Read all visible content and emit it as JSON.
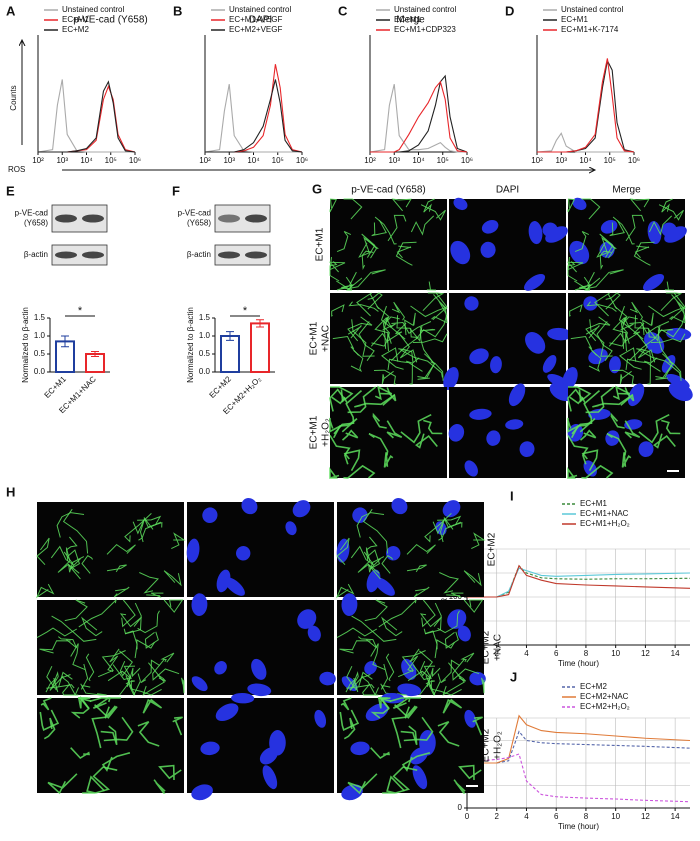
{
  "flow_axes": {
    "y_label": "Counts",
    "x_label": "ROS"
  },
  "chart_data": [
    {
      "panel": "A",
      "type": "line",
      "log_x": true,
      "xlim": [
        100,
        1000000
      ],
      "ylim": [
        0,
        100
      ],
      "xticks": [
        {
          "value": 100,
          "label": "10²"
        },
        {
          "value": 1000,
          "label": "10³"
        },
        {
          "value": 10000,
          "label": "10⁴"
        },
        {
          "value": 100000,
          "label": "10⁵"
        },
        {
          "value": 1000000,
          "label": "10⁶"
        }
      ],
      "x": [
        100,
        400,
        630,
        1000,
        1600,
        4000,
        10000,
        25000,
        50000,
        80000,
        126000,
        200000,
        400000,
        1000000
      ],
      "series": [
        {
          "name": "Unstained control",
          "color": "#aaaaaa",
          "values": [
            0,
            2,
            40,
            62,
            15,
            1,
            0,
            0,
            0,
            0,
            0,
            0,
            0,
            0
          ]
        },
        {
          "name": "EC+M1",
          "color": "#e8262a",
          "values": [
            0,
            0,
            0,
            0,
            0,
            1,
            2,
            10,
            45,
            56,
            45,
            15,
            2,
            0
          ]
        },
        {
          "name": "EC+M2",
          "color": "#222222",
          "values": [
            0,
            0,
            0,
            0,
            0,
            1,
            3,
            12,
            52,
            60,
            42,
            12,
            1,
            0
          ]
        }
      ]
    },
    {
      "panel": "B",
      "type": "line",
      "log_x": true,
      "xlim": [
        100,
        1000000
      ],
      "ylim": [
        0,
        100
      ],
      "xticks": [
        {
          "value": 100,
          "label": "10²"
        },
        {
          "value": 1000,
          "label": "10³"
        },
        {
          "value": 10000,
          "label": "10⁴"
        },
        {
          "value": 100000,
          "label": "10⁵"
        },
        {
          "value": 1000000,
          "label": "10⁶"
        }
      ],
      "x": [
        100,
        400,
        630,
        1000,
        1600,
        4000,
        10000,
        25000,
        50000,
        80000,
        126000,
        200000,
        400000,
        1000000
      ],
      "series": [
        {
          "name": "Unstained control",
          "color": "#aaaaaa",
          "values": [
            0,
            2,
            35,
            58,
            14,
            1,
            0,
            0,
            0,
            0,
            0,
            0,
            0,
            0
          ]
        },
        {
          "name": "EC+M1+VEGF",
          "color": "#e8262a",
          "values": [
            0,
            0,
            0,
            0,
            0,
            1,
            4,
            14,
            40,
            75,
            55,
            15,
            2,
            0
          ]
        },
        {
          "name": "EC+M2+VEGF",
          "color": "#222222",
          "values": [
            0,
            0,
            0,
            0,
            0,
            2,
            8,
            22,
            45,
            62,
            42,
            10,
            1,
            0
          ]
        }
      ]
    },
    {
      "panel": "C",
      "type": "line",
      "log_x": true,
      "xlim": [
        100,
        1000000
      ],
      "ylim": [
        0,
        100
      ],
      "xticks": [
        {
          "value": 100,
          "label": "10²"
        },
        {
          "value": 1000,
          "label": "10³"
        },
        {
          "value": 10000,
          "label": "10⁴"
        },
        {
          "value": 100000,
          "label": "10⁵"
        },
        {
          "value": 1000000,
          "label": "10⁶"
        }
      ],
      "x": [
        100,
        400,
        630,
        1000,
        1600,
        4000,
        10000,
        25000,
        50000,
        80000,
        126000,
        200000,
        400000,
        1000000
      ],
      "series": [
        {
          "name": "Unstained control",
          "color": "#aaaaaa",
          "values": [
            0,
            2,
            40,
            58,
            14,
            2,
            2,
            3,
            6,
            8,
            4,
            1,
            0,
            0
          ]
        },
        {
          "name": "EC+M1",
          "color": "#222222",
          "values": [
            0,
            0,
            0,
            0,
            0,
            1,
            6,
            18,
            40,
            60,
            65,
            30,
            3,
            0
          ]
        },
        {
          "name": "EC+M1+CDP323",
          "color": "#e8262a",
          "values": [
            0,
            0,
            0,
            0,
            2,
            15,
            30,
            42,
            55,
            60,
            45,
            12,
            1,
            0
          ]
        }
      ]
    },
    {
      "panel": "D",
      "type": "line",
      "log_x": true,
      "xlim": [
        100,
        1000000
      ],
      "ylim": [
        0,
        100
      ],
      "xticks": [
        {
          "value": 100,
          "label": "10²"
        },
        {
          "value": 1000,
          "label": "10³"
        },
        {
          "value": 10000,
          "label": "10⁴"
        },
        {
          "value": 100000,
          "label": "10⁵"
        },
        {
          "value": 1000000,
          "label": "10⁶"
        }
      ],
      "x": [
        100,
        400,
        630,
        1000,
        1600,
        4000,
        10000,
        25000,
        50000,
        80000,
        126000,
        200000,
        400000,
        1000000
      ],
      "series": [
        {
          "name": "Unstained control",
          "color": "#aaaaaa",
          "values": [
            0,
            1,
            10,
            16,
            5,
            0,
            0,
            0,
            0,
            0,
            0,
            0,
            0,
            0
          ]
        },
        {
          "name": "EC+M1",
          "color": "#222222",
          "values": [
            0,
            0,
            0,
            0,
            0,
            1,
            3,
            12,
            55,
            78,
            70,
            25,
            2,
            0
          ]
        },
        {
          "name": "EC+M1+K-7174",
          "color": "#e8262a",
          "values": [
            0,
            0,
            0,
            0,
            0,
            1,
            4,
            15,
            60,
            80,
            48,
            12,
            1,
            0
          ]
        }
      ]
    },
    {
      "panel": "E",
      "type": "bar",
      "ylabel": "Normalized to β-actin",
      "annotation": "*",
      "categories": [
        "EC+M1",
        "EC+M1+NAC"
      ],
      "values": [
        0.85,
        0.5
      ],
      "errors": [
        0.15,
        0.07
      ],
      "colors": [
        "#1f3e9e",
        "#e8262a"
      ],
      "ylim": [
        0,
        1.5
      ],
      "yticks": [
        {
          "value": 0,
          "label": "0.0"
        },
        0.5,
        {
          "value": 1,
          "label": "1.0"
        },
        1.5
      ]
    },
    {
      "panel": "F",
      "type": "bar",
      "ylabel": "Normalized to β-actin",
      "annotation": "*",
      "categories": [
        "EC+M2",
        "EC+M2+H₂O₂"
      ],
      "values": [
        1.0,
        1.35
      ],
      "errors": [
        0.12,
        0.1
      ],
      "colors": [
        "#1f3e9e",
        "#e8262a"
      ],
      "ylim": [
        0,
        1.5
      ],
      "yticks": [
        {
          "value": 0,
          "label": "0.0"
        },
        0.5,
        {
          "value": 1,
          "label": "1.0"
        },
        1.5
      ]
    },
    {
      "panel": "I",
      "type": "line",
      "ylabel": "TER in %",
      "xlabel": "Time (hour)",
      "grid": true,
      "xlim": [
        0,
        15
      ],
      "ylim": [
        0,
        200
      ],
      "xticks": [
        0,
        2,
        4,
        6,
        8,
        10,
        12,
        14
      ],
      "yticks": [
        0,
        50,
        100,
        150,
        200
      ],
      "x": [
        0,
        1,
        2,
        2.8,
        3.5,
        4,
        5,
        6,
        8,
        10,
        12,
        15
      ],
      "series": [
        {
          "name": "EC+M1",
          "color": "#3a8a3a",
          "dashed": true,
          "values": [
            100,
            100,
            100,
            110,
            165,
            150,
            140,
            138,
            137,
            138,
            138,
            139
          ]
        },
        {
          "name": "EC+M1+NAC",
          "color": "#5bc8d8",
          "dashed": false,
          "values": [
            100,
            100,
            100,
            112,
            160,
            155,
            145,
            143,
            145,
            147,
            148,
            150
          ]
        },
        {
          "name": "EC+M1+H₂O₂",
          "color": "#c0392b",
          "dashed": false,
          "values": [
            100,
            100,
            100,
            105,
            165,
            145,
            135,
            128,
            125,
            123,
            121,
            118
          ]
        }
      ]
    },
    {
      "panel": "J",
      "type": "line",
      "ylabel": "TER in %",
      "xlabel": "Time (hour)",
      "grid": true,
      "xlim": [
        0,
        15
      ],
      "ylim": [
        0,
        200
      ],
      "xticks": [
        0,
        2,
        4,
        6,
        8,
        10,
        12,
        14
      ],
      "yticks": [
        0,
        50,
        100,
        150,
        200
      ],
      "x": [
        0,
        1,
        2,
        2.8,
        3.5,
        4,
        5,
        6,
        8,
        10,
        12,
        15
      ],
      "series": [
        {
          "name": "EC+M2",
          "color": "#5566aa",
          "dashed": true,
          "values": [
            100,
            100,
            100,
            105,
            170,
            150,
            145,
            143,
            141,
            139,
            137,
            133
          ]
        },
        {
          "name": "EC+M2+NAC",
          "color": "#e07b39",
          "dashed": false,
          "values": [
            100,
            100,
            100,
            110,
            205,
            185,
            172,
            168,
            165,
            160,
            155,
            150
          ]
        },
        {
          "name": "EC+M2+H₂O₂",
          "color": "#cc55dd",
          "dashed": true,
          "values": [
            100,
            105,
            108,
            112,
            120,
            60,
            30,
            25,
            22,
            20,
            17,
            14
          ]
        }
      ]
    }
  ],
  "blots": {
    "E": {
      "rows": [
        [
          "p-VE-cad",
          "(Y658)"
        ],
        [
          "β-actin"
        ]
      ]
    },
    "F": {
      "rows": [
        [
          "p-VE-cad",
          "(Y658)"
        ],
        [
          "β-actin"
        ]
      ]
    }
  },
  "micrographs": {
    "G": {
      "panel": "G",
      "columns": [
        "p-VE-cad (Y658)",
        "DAPI",
        "Merge"
      ],
      "rows": [
        [
          "EC+M1"
        ],
        [
          "EC+M1",
          "+NAC"
        ],
        [
          "EC+M1",
          "+H₂O₂"
        ]
      ]
    },
    "H": {
      "panel": "H",
      "columns": [
        "p-VE-cad (Y658)",
        "DAPI",
        "Merge"
      ],
      "rows": [
        [
          "EC+M2"
        ],
        [
          "EC+M2",
          "+NAC"
        ],
        [
          "EC+M2",
          "+H₂O₂"
        ]
      ]
    }
  }
}
